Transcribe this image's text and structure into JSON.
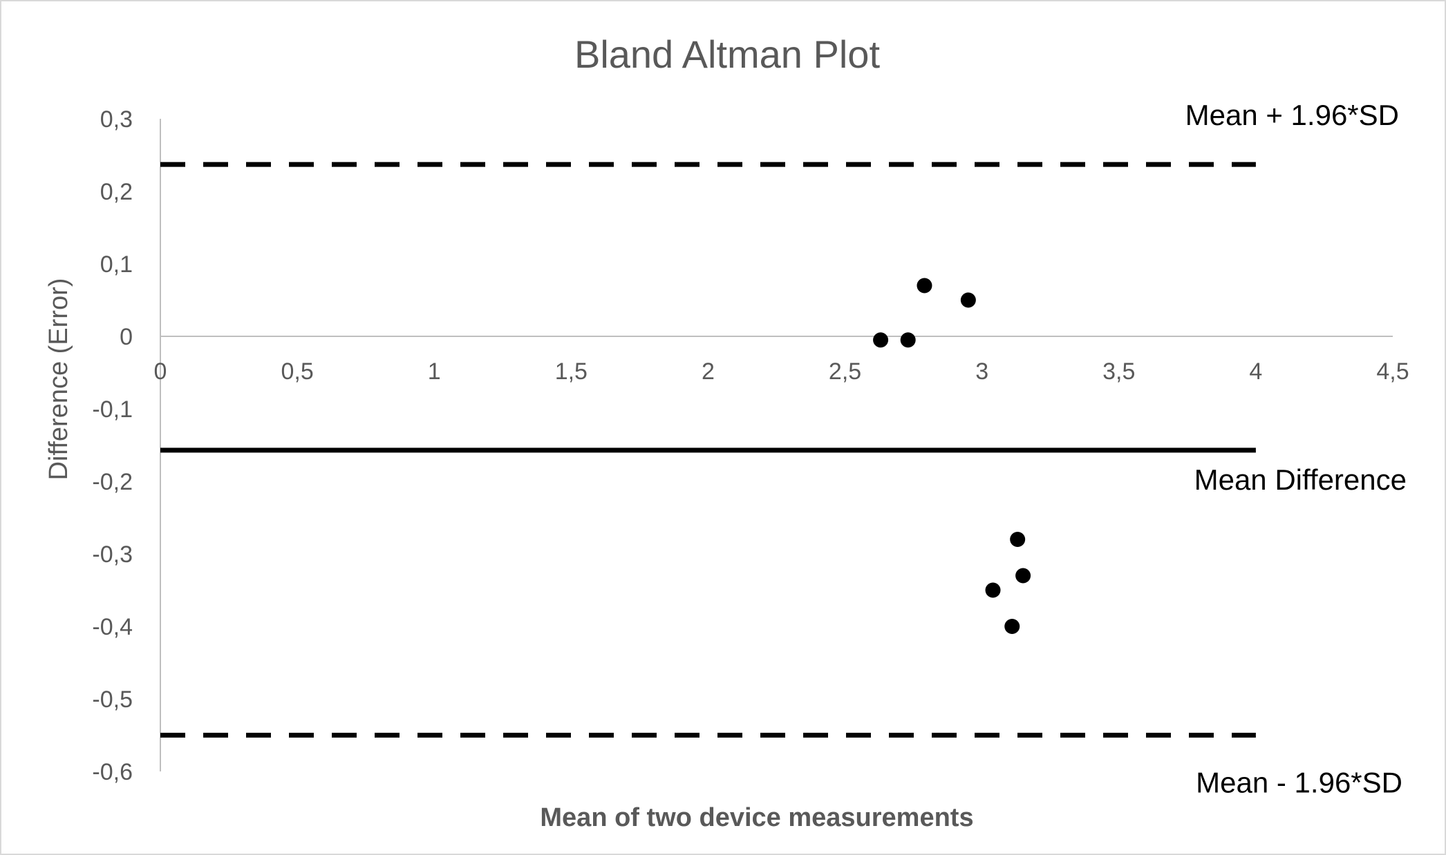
{
  "chart_data": {
    "type": "scatter",
    "title": "Bland Altman Plot",
    "xlabel": "Mean of two device measurements",
    "ylabel": "Difference (Error)",
    "xlim": [
      0,
      4.5
    ],
    "ylim": [
      -0.6,
      0.3
    ],
    "x_ticks": [
      "0",
      "0,5",
      "1",
      "1,5",
      "2",
      "2,5",
      "3",
      "3,5",
      "4",
      "4,5"
    ],
    "y_ticks": [
      "0,3",
      "0,2",
      "0,1",
      "0",
      "-0,1",
      "-0,2",
      "-0,3",
      "-0,4",
      "-0,5",
      "-0,6"
    ],
    "x_tick_values": [
      0,
      0.5,
      1,
      1.5,
      2,
      2.5,
      3,
      3.5,
      4,
      4.5
    ],
    "y_tick_values": [
      0.3,
      0.2,
      0.1,
      0,
      -0.1,
      -0.2,
      -0.3,
      -0.4,
      -0.5,
      -0.6
    ],
    "points": [
      {
        "x": 2.63,
        "y": -0.005
      },
      {
        "x": 2.73,
        "y": -0.005
      },
      {
        "x": 2.79,
        "y": 0.07
      },
      {
        "x": 2.95,
        "y": 0.05
      },
      {
        "x": 3.13,
        "y": -0.28
      },
      {
        "x": 3.15,
        "y": -0.33
      },
      {
        "x": 3.04,
        "y": -0.35
      },
      {
        "x": 3.11,
        "y": -0.4
      }
    ],
    "reference_lines": [
      {
        "label": "Mean + 1.96*SD",
        "y": 0.237,
        "x_range": [
          0,
          4
        ],
        "style": "dashed"
      },
      {
        "label": "Mean Difference",
        "y": -0.157,
        "x_range": [
          0,
          4
        ],
        "style": "solid"
      },
      {
        "label": "Mean - 1.96*SD",
        "y": -0.55,
        "x_range": [
          0,
          4
        ],
        "style": "dashed"
      }
    ],
    "grid": false,
    "legend": "none",
    "colors": {
      "points": "#000000",
      "axis": "#bfbfbf",
      "text": "#595959"
    }
  }
}
